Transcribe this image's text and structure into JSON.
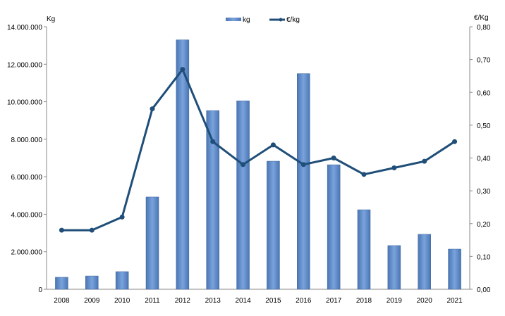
{
  "chart_data": {
    "type": "bar+line",
    "categories": [
      "2008",
      "2009",
      "2010",
      "2011",
      "2012",
      "2013",
      "2014",
      "2015",
      "2016",
      "2017",
      "2018",
      "2019",
      "2020",
      "2021"
    ],
    "series": [
      {
        "name": "kg",
        "type": "bar",
        "axis": "left",
        "color": "#5b87c5",
        "values": [
          640000,
          710000,
          940000,
          4920000,
          13300000,
          9530000,
          10050000,
          6830000,
          11500000,
          6640000,
          4240000,
          2330000,
          2930000,
          2140000
        ]
      },
      {
        "name": "€/kg",
        "type": "line",
        "axis": "right",
        "color": "#1f4e79",
        "values": [
          0.18,
          0.18,
          0.22,
          0.55,
          0.67,
          0.45,
          0.38,
          0.44,
          0.38,
          0.4,
          0.35,
          0.37,
          0.39,
          0.45
        ]
      }
    ],
    "ylabel": "Kg",
    "y2label": "€/Kg",
    "ylim": [
      0,
      14000000
    ],
    "y2lim": [
      0,
      0.8
    ],
    "yticks": [
      "0",
      "2.000.000",
      "4.000.000",
      "6.000.000",
      "8.000.000",
      "10.000.000",
      "12.000.000",
      "14.000.000"
    ],
    "y2ticks": [
      "0,00",
      "0,10",
      "0,20",
      "0,30",
      "0,40",
      "0,50",
      "0,60",
      "0,70",
      "0,80"
    ],
    "legend": "top",
    "grid": false
  }
}
